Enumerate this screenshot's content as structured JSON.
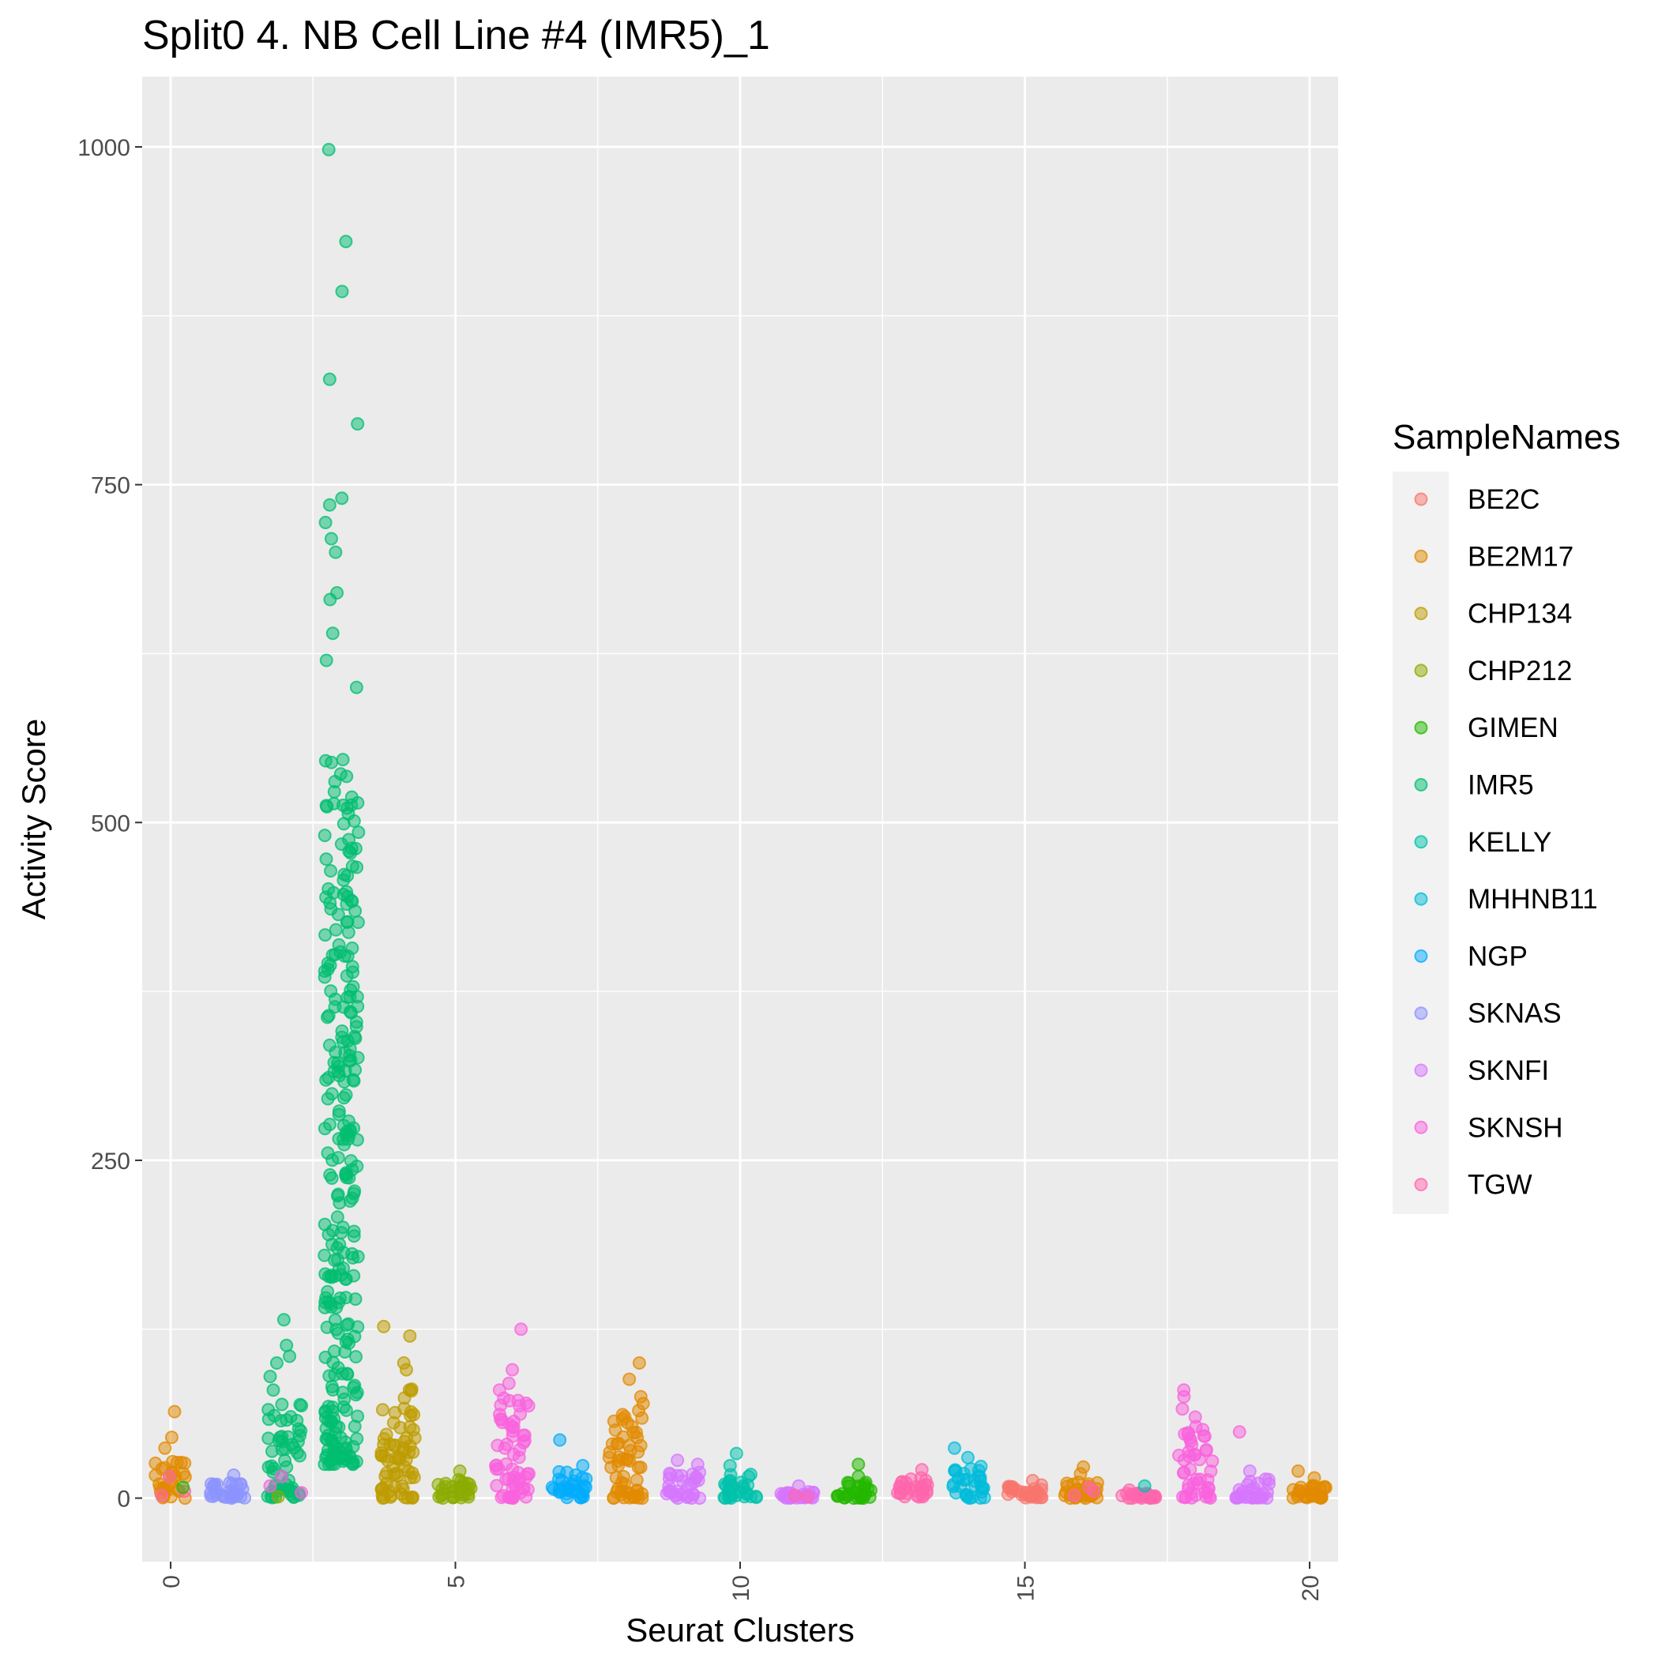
{
  "chart_data": {
    "type": "scatter",
    "subtype": "jitter-by-cluster",
    "title": "Split0 4. NB Cell Line #4 (IMR5)_1",
    "xlabel": "Seurat Clusters",
    "ylabel": "Activity Score",
    "xlim": [
      -0.5,
      20.5
    ],
    "ylim": [
      -47,
      1052
    ],
    "x_ticks": [
      0,
      5,
      10,
      15,
      20
    ],
    "y_ticks": [
      0,
      250,
      500,
      750,
      1000
    ],
    "grid": true,
    "legend": {
      "title": "SampleNames",
      "position": "right",
      "entries": [
        {
          "name": "BE2C",
          "color": "#F8766D"
        },
        {
          "name": "BE2M17",
          "color": "#E18A00"
        },
        {
          "name": "CHP134",
          "color": "#BE9C00"
        },
        {
          "name": "CHP212",
          "color": "#8CAB00"
        },
        {
          "name": "GIMEN",
          "color": "#24B700"
        },
        {
          "name": "IMR5",
          "color": "#00BE70"
        },
        {
          "name": "KELLY",
          "color": "#00C1AB"
        },
        {
          "name": "MHHNB11",
          "color": "#00BBDA"
        },
        {
          "name": "NGP",
          "color": "#00ACFC"
        },
        {
          "name": "SKNAS",
          "color": "#8B93FF"
        },
        {
          "name": "SKNFI",
          "color": "#D575FE"
        },
        {
          "name": "SKNSH",
          "color": "#F962DD"
        },
        {
          "name": "TGW",
          "color": "#FF65AC"
        }
      ]
    },
    "clusters": [
      {
        "cluster": 0,
        "sample": "BE2M17",
        "bulk_max": 30,
        "outliers": [
          37,
          45,
          64
        ],
        "extras": [
          {
            "sample": "TGW",
            "values": [
              2,
              5,
              16
            ]
          },
          {
            "sample": "GIMEN",
            "values": [
              8
            ]
          }
        ]
      },
      {
        "cluster": 1,
        "sample": "SKNAS",
        "bulk_max": 12,
        "outliers": [
          17
        ]
      },
      {
        "cluster": 2,
        "sample": "IMR5",
        "bulk_max": 70,
        "outliers": [
          80,
          90,
          100,
          105,
          113,
          132
        ],
        "extras": [
          {
            "sample": "SKNSH",
            "values": [
              4,
              9,
              16
            ]
          },
          {
            "sample": "CHP212",
            "values": [
              1
            ]
          }
        ]
      },
      {
        "cluster": 3,
        "sample": "IMR5",
        "bulk_min": 25,
        "bulk_max": 550,
        "outliers": [
          600,
          620,
          640,
          665,
          670,
          700,
          710,
          722,
          735,
          740,
          795,
          828,
          893,
          930,
          998
        ]
      },
      {
        "cluster": 4,
        "sample": "CHP134",
        "bulk_max": 85,
        "outliers": [
          95,
          100,
          120,
          127
        ]
      },
      {
        "cluster": 5,
        "sample": "CHP212",
        "bulk_max": 14,
        "outliers": [
          20
        ]
      },
      {
        "cluster": 6,
        "sample": "SKNSH",
        "bulk_max": 75,
        "outliers": [
          80,
          85,
          95,
          125
        ]
      },
      {
        "cluster": 7,
        "sample": "NGP",
        "bulk_max": 20,
        "outliers": [
          24,
          43
        ]
      },
      {
        "cluster": 8,
        "sample": "BE2M17",
        "bulk_max": 70,
        "outliers": [
          75,
          88,
          100
        ]
      },
      {
        "cluster": 9,
        "sample": "SKNFI",
        "bulk_max": 20,
        "outliers": [
          25,
          28
        ]
      },
      {
        "cluster": 10,
        "sample": "KELLY",
        "bulk_max": 18,
        "outliers": [
          24,
          33
        ]
      },
      {
        "cluster": 11,
        "sample": "SKNFI",
        "bulk_max": 5,
        "outliers": [
          9
        ],
        "extras": [
          {
            "sample": "TGW",
            "values": [
              1,
              2
            ]
          }
        ]
      },
      {
        "cluster": 12,
        "sample": "GIMEN",
        "bulk_max": 12,
        "outliers": [
          16,
          25
        ]
      },
      {
        "cluster": 13,
        "sample": "TGW",
        "bulk_max": 17,
        "outliers": [
          21
        ]
      },
      {
        "cluster": 14,
        "sample": "MHHNB11",
        "bulk_max": 25,
        "outliers": [
          30,
          37
        ]
      },
      {
        "cluster": 15,
        "sample": "BE2C",
        "bulk_max": 10,
        "outliers": [
          13
        ]
      },
      {
        "cluster": 16,
        "sample": "BE2M17",
        "bulk_max": 14,
        "outliers": [
          18,
          23
        ],
        "extras": [
          {
            "sample": "TGW",
            "values": [
              2,
              5,
              8
            ]
          }
        ]
      },
      {
        "cluster": 17,
        "sample": "TGW",
        "bulk_max": 4,
        "outliers": [
          6
        ],
        "extras": [
          {
            "sample": "KELLY",
            "values": [
              9
            ]
          }
        ]
      },
      {
        "cluster": 18,
        "sample": "SKNSH",
        "bulk_max": 55,
        "outliers": [
          60,
          66,
          75,
          80
        ]
      },
      {
        "cluster": 19,
        "sample": "SKNFI",
        "bulk_max": 15,
        "outliers": [
          20
        ],
        "extras": [
          {
            "sample": "SKNSH",
            "values": [
              49
            ]
          }
        ]
      },
      {
        "cluster": 20,
        "sample": "BE2M17",
        "bulk_max": 10,
        "outliers": [
          15,
          20
        ]
      }
    ]
  }
}
